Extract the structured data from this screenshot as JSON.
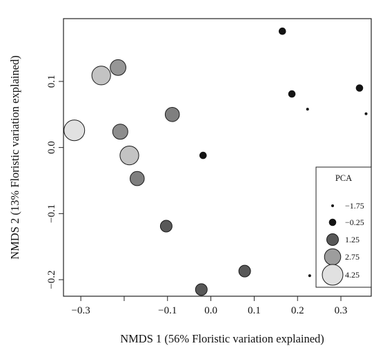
{
  "chart_data": {
    "type": "scatter",
    "title": "",
    "xlabel": "NMDS 1 (56% Floristic variation explained)",
    "ylabel": "NMDS 2 (13% Floristic variation explained)",
    "xlim": [
      -0.34,
      0.37
    ],
    "ylim": [
      -0.225,
      0.195
    ],
    "x_ticks": [
      {
        "value": -0.3,
        "label": "−0.3"
      },
      {
        "value": -0.1,
        "label": "−0.1"
      },
      {
        "value": 0.0,
        "label": "0.0"
      },
      {
        "value": 0.1,
        "label": "0.1"
      },
      {
        "value": 0.2,
        "label": "0.2"
      },
      {
        "value": 0.3,
        "label": "0.3"
      }
    ],
    "x_minor_ticks": [
      -0.2
    ],
    "y_ticks": [
      {
        "value": 0.1,
        "label": "0.1"
      },
      {
        "value": 0.0,
        "label": "0.0"
      },
      {
        "value": -0.1,
        "label": "−0.1"
      },
      {
        "value": -0.2,
        "label": "−0.2"
      }
    ],
    "grid": false,
    "legend": {
      "title": "PCA",
      "position": "bottom-right",
      "entries": [
        {
          "label": "−1.75",
          "pca": -1.75
        },
        {
          "label": "−0.25",
          "pca": -0.25
        },
        {
          "label": "1.25",
          "pca": 1.25
        },
        {
          "label": "2.75",
          "pca": 2.75
        },
        {
          "label": "4.25",
          "pca": 4.25
        }
      ]
    },
    "points": [
      {
        "x": 0.165,
        "y": 0.176,
        "pca": -0.25
      },
      {
        "x": 0.187,
        "y": 0.081,
        "pca": -0.25
      },
      {
        "x": 0.343,
        "y": 0.09,
        "pca": -0.25
      },
      {
        "x": 0.223,
        "y": 0.058,
        "pca": -1.75
      },
      {
        "x": 0.358,
        "y": 0.051,
        "pca": -1.75
      },
      {
        "x": -0.018,
        "y": -0.012,
        "pca": -0.25
      },
      {
        "x": 0.228,
        "y": -0.194,
        "pca": -1.75
      },
      {
        "x": 0.078,
        "y": -0.187,
        "pca": 1.25
      },
      {
        "x": -0.022,
        "y": -0.215,
        "pca": 1.25
      },
      {
        "x": -0.103,
        "y": -0.119,
        "pca": 1.25
      },
      {
        "x": -0.089,
        "y": 0.05,
        "pca": 2.1
      },
      {
        "x": -0.17,
        "y": -0.047,
        "pca": 2.1
      },
      {
        "x": -0.209,
        "y": 0.024,
        "pca": 2.4
      },
      {
        "x": -0.214,
        "y": 0.121,
        "pca": 2.6
      },
      {
        "x": -0.253,
        "y": 0.109,
        "pca": 3.6
      },
      {
        "x": -0.188,
        "y": -0.012,
        "pca": 3.6
      },
      {
        "x": -0.315,
        "y": 0.026,
        "pca": 4.25
      }
    ]
  }
}
